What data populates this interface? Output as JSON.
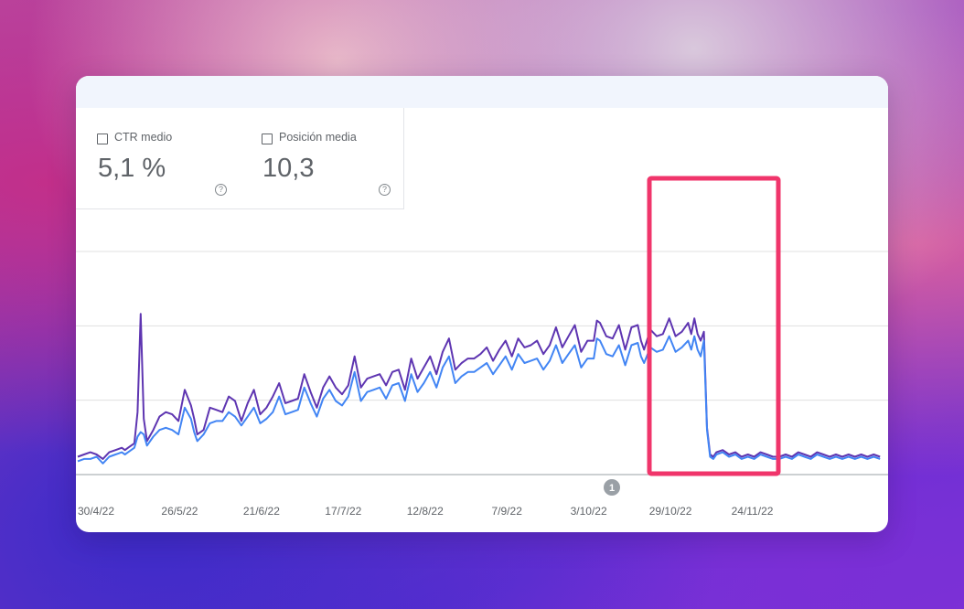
{
  "metrics": [
    {
      "label": "CTR medio",
      "value": "5,1 %"
    },
    {
      "label": "Posición media",
      "value": "10,3"
    }
  ],
  "help_glyph": "?",
  "annotation_marker": "1",
  "colors": {
    "series_1": "#5e35b1",
    "series_2": "#4285f4",
    "highlight_box": "#f0356b",
    "gridline": "#e0e0e0",
    "axis": "#9aa0a6"
  },
  "chart_data": {
    "type": "line",
    "x_range": [
      "2022-04-30",
      "2022-12-01"
    ],
    "x_tick_labels": [
      "30/4/22",
      "26/5/22",
      "21/6/22",
      "17/7/22",
      "12/8/22",
      "7/9/22",
      "3/10/22",
      "29/10/22",
      "24/11/22"
    ],
    "y_ticks_count": 4,
    "grid": true,
    "legend": "none",
    "highlight": {
      "from": "2022-10-11",
      "to": "2022-11-03"
    },
    "annotation": {
      "date": "2022-10-03",
      "label": "1"
    },
    "series": [
      {
        "values": [
          [
            0,
            8
          ],
          [
            2,
            9
          ],
          [
            4,
            10
          ],
          [
            6,
            9
          ],
          [
            8,
            7
          ],
          [
            10,
            10
          ],
          [
            12,
            11
          ],
          [
            14,
            12
          ],
          [
            15,
            11
          ],
          [
            16,
            12
          ],
          [
            18,
            14
          ],
          [
            19,
            28
          ],
          [
            20,
            72
          ],
          [
            21,
            25
          ],
          [
            22,
            15
          ],
          [
            24,
            20
          ],
          [
            26,
            26
          ],
          [
            28,
            28
          ],
          [
            30,
            27
          ],
          [
            32,
            24
          ],
          [
            34,
            38
          ],
          [
            36,
            31
          ],
          [
            37,
            25
          ],
          [
            38,
            18
          ],
          [
            40,
            20
          ],
          [
            42,
            30
          ],
          [
            44,
            29
          ],
          [
            46,
            28
          ],
          [
            48,
            35
          ],
          [
            50,
            33
          ],
          [
            52,
            24
          ],
          [
            54,
            32
          ],
          [
            56,
            38
          ],
          [
            58,
            27
          ],
          [
            60,
            30
          ],
          [
            62,
            35
          ],
          [
            64,
            41
          ],
          [
            66,
            32
          ],
          [
            68,
            33
          ],
          [
            70,
            34
          ],
          [
            72,
            45
          ],
          [
            74,
            37
          ],
          [
            76,
            30
          ],
          [
            78,
            39
          ],
          [
            80,
            44
          ],
          [
            82,
            39
          ],
          [
            84,
            36
          ],
          [
            86,
            40
          ],
          [
            88,
            53
          ],
          [
            90,
            39
          ],
          [
            92,
            43
          ],
          [
            94,
            44
          ],
          [
            96,
            45
          ],
          [
            98,
            40
          ],
          [
            100,
            46
          ],
          [
            102,
            47
          ],
          [
            104,
            38
          ],
          [
            106,
            52
          ],
          [
            108,
            43
          ],
          [
            110,
            48
          ],
          [
            112,
            53
          ],
          [
            114,
            45
          ],
          [
            116,
            55
          ],
          [
            118,
            61
          ],
          [
            120,
            47
          ],
          [
            122,
            50
          ],
          [
            124,
            52
          ],
          [
            126,
            52
          ],
          [
            128,
            54
          ],
          [
            130,
            57
          ],
          [
            132,
            51
          ],
          [
            134,
            56
          ],
          [
            136,
            60
          ],
          [
            138,
            53
          ],
          [
            140,
            61
          ],
          [
            142,
            57
          ],
          [
            144,
            58
          ],
          [
            146,
            60
          ],
          [
            148,
            54
          ],
          [
            150,
            58
          ],
          [
            152,
            66
          ],
          [
            154,
            57
          ],
          [
            156,
            62
          ],
          [
            158,
            67
          ],
          [
            160,
            55
          ],
          [
            162,
            60
          ],
          [
            164,
            60
          ],
          [
            165,
            69
          ],
          [
            166,
            68
          ],
          [
            168,
            62
          ],
          [
            170,
            61
          ],
          [
            172,
            67
          ],
          [
            174,
            56
          ],
          [
            176,
            66
          ],
          [
            178,
            67
          ],
          [
            179,
            60
          ],
          [
            180,
            56
          ],
          [
            182,
            65
          ],
          [
            184,
            62
          ],
          [
            186,
            63
          ],
          [
            188,
            70
          ],
          [
            190,
            62
          ],
          [
            192,
            64
          ],
          [
            194,
            68
          ],
          [
            195,
            63
          ],
          [
            196,
            70
          ],
          [
            197,
            63
          ],
          [
            198,
            60
          ],
          [
            199,
            64
          ],
          [
            200,
            21
          ],
          [
            201,
            9
          ],
          [
            202,
            8
          ],
          [
            203,
            10
          ],
          [
            205,
            11
          ],
          [
            207,
            9
          ],
          [
            209,
            10
          ],
          [
            211,
            8
          ],
          [
            213,
            9
          ],
          [
            215,
            8
          ],
          [
            217,
            10
          ],
          [
            219,
            9
          ],
          [
            221,
            8
          ],
          [
            223,
            8
          ],
          [
            225,
            9
          ],
          [
            227,
            8
          ],
          [
            229,
            10
          ],
          [
            231,
            9
          ],
          [
            233,
            8
          ],
          [
            235,
            10
          ],
          [
            237,
            9
          ],
          [
            239,
            8
          ],
          [
            241,
            9
          ],
          [
            243,
            8
          ],
          [
            245,
            9
          ],
          [
            247,
            8
          ],
          [
            249,
            9
          ],
          [
            251,
            8
          ],
          [
            253,
            9
          ],
          [
            255,
            8
          ]
        ]
      },
      {
        "values": [
          [
            0,
            6
          ],
          [
            2,
            7
          ],
          [
            4,
            7
          ],
          [
            6,
            8
          ],
          [
            8,
            5
          ],
          [
            10,
            8
          ],
          [
            12,
            9
          ],
          [
            14,
            10
          ],
          [
            15,
            9
          ],
          [
            16,
            10
          ],
          [
            18,
            12
          ],
          [
            19,
            17
          ],
          [
            20,
            19
          ],
          [
            21,
            18
          ],
          [
            22,
            13
          ],
          [
            24,
            17
          ],
          [
            26,
            20
          ],
          [
            28,
            21
          ],
          [
            30,
            20
          ],
          [
            32,
            18
          ],
          [
            34,
            30
          ],
          [
            36,
            25
          ],
          [
            37,
            19
          ],
          [
            38,
            15
          ],
          [
            40,
            18
          ],
          [
            42,
            23
          ],
          [
            44,
            24
          ],
          [
            46,
            24
          ],
          [
            48,
            28
          ],
          [
            50,
            26
          ],
          [
            52,
            22
          ],
          [
            54,
            26
          ],
          [
            56,
            30
          ],
          [
            58,
            23
          ],
          [
            60,
            25
          ],
          [
            62,
            28
          ],
          [
            64,
            35
          ],
          [
            66,
            27
          ],
          [
            68,
            28
          ],
          [
            70,
            29
          ],
          [
            72,
            39
          ],
          [
            74,
            32
          ],
          [
            76,
            26
          ],
          [
            78,
            34
          ],
          [
            80,
            38
          ],
          [
            82,
            33
          ],
          [
            84,
            31
          ],
          [
            86,
            35
          ],
          [
            88,
            46
          ],
          [
            90,
            33
          ],
          [
            92,
            37
          ],
          [
            94,
            38
          ],
          [
            96,
            39
          ],
          [
            98,
            34
          ],
          [
            100,
            40
          ],
          [
            102,
            41
          ],
          [
            104,
            33
          ],
          [
            106,
            45
          ],
          [
            108,
            37
          ],
          [
            110,
            41
          ],
          [
            112,
            46
          ],
          [
            114,
            39
          ],
          [
            116,
            48
          ],
          [
            118,
            53
          ],
          [
            120,
            41
          ],
          [
            122,
            44
          ],
          [
            124,
            46
          ],
          [
            126,
            46
          ],
          [
            128,
            48
          ],
          [
            130,
            50
          ],
          [
            132,
            45
          ],
          [
            134,
            49
          ],
          [
            136,
            53
          ],
          [
            138,
            47
          ],
          [
            140,
            54
          ],
          [
            142,
            50
          ],
          [
            144,
            51
          ],
          [
            146,
            52
          ],
          [
            148,
            47
          ],
          [
            150,
            51
          ],
          [
            152,
            58
          ],
          [
            154,
            50
          ],
          [
            156,
            54
          ],
          [
            158,
            58
          ],
          [
            160,
            48
          ],
          [
            162,
            52
          ],
          [
            164,
            52
          ],
          [
            165,
            61
          ],
          [
            166,
            60
          ],
          [
            168,
            54
          ],
          [
            170,
            53
          ],
          [
            172,
            58
          ],
          [
            174,
            49
          ],
          [
            176,
            58
          ],
          [
            178,
            59
          ],
          [
            179,
            53
          ],
          [
            180,
            50
          ],
          [
            182,
            57
          ],
          [
            184,
            55
          ],
          [
            186,
            56
          ],
          [
            188,
            62
          ],
          [
            190,
            55
          ],
          [
            192,
            57
          ],
          [
            194,
            60
          ],
          [
            195,
            56
          ],
          [
            196,
            62
          ],
          [
            197,
            56
          ],
          [
            198,
            53
          ],
          [
            199,
            60
          ],
          [
            200,
            20
          ],
          [
            201,
            8
          ],
          [
            202,
            7
          ],
          [
            203,
            9
          ],
          [
            205,
            10
          ],
          [
            207,
            8
          ],
          [
            209,
            9
          ],
          [
            211,
            7
          ],
          [
            213,
            8
          ],
          [
            215,
            7
          ],
          [
            217,
            9
          ],
          [
            219,
            8
          ],
          [
            221,
            7
          ],
          [
            223,
            7
          ],
          [
            225,
            8
          ],
          [
            227,
            7
          ],
          [
            229,
            9
          ],
          [
            231,
            8
          ],
          [
            233,
            7
          ],
          [
            235,
            9
          ],
          [
            237,
            8
          ],
          [
            239,
            7
          ],
          [
            241,
            8
          ],
          [
            243,
            7
          ],
          [
            245,
            8
          ],
          [
            247,
            7
          ],
          [
            249,
            8
          ],
          [
            251,
            7
          ],
          [
            253,
            8
          ],
          [
            255,
            7
          ]
        ]
      }
    ]
  }
}
